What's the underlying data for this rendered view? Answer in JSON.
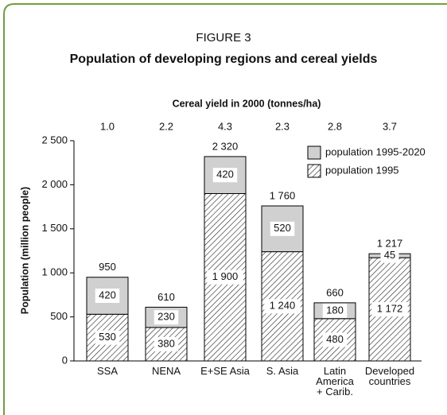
{
  "chart_data": {
    "type": "stacked_bar",
    "figure_label": "FIGURE 3",
    "title": "Population of developing regions and cereal yields",
    "subtitle": "Cereal yield in 2000 (tonnes/ha)",
    "y_label": "Population (million people)",
    "categories": [
      [
        "SSA"
      ],
      [
        "NENA"
      ],
      [
        "E+SE Asia"
      ],
      [
        "S. Asia"
      ],
      [
        "Latin",
        "America",
        "+ Carib."
      ],
      [
        "Developed",
        "countries"
      ]
    ],
    "cereal_yield": {
      "values": [
        1.0,
        2.2,
        4.3,
        2.3,
        2.8,
        3.7
      ],
      "value_labels": [
        "1.0",
        "2.2",
        "4.3",
        "2.3",
        "2.8",
        "3.7"
      ]
    },
    "series": [
      {
        "name": "population 1995",
        "color": "hatch",
        "values": [
          530,
          380,
          1900,
          1240,
          480,
          1172
        ],
        "value_labels": [
          "530",
          "380",
          "1 900",
          "1 240",
          "480",
          "1 172"
        ]
      },
      {
        "name": "population 1995-2020",
        "color": "#d0d0d0",
        "values": [
          420,
          230,
          420,
          520,
          180,
          45
        ]
      }
    ],
    "totals": [
      950,
      610,
      2320,
      1760,
      660,
      1217
    ],
    "total_labels": [
      "950",
      "610",
      "2 320",
      "1 760",
      "660",
      "1 217"
    ],
    "ylim": [
      0,
      2500
    ],
    "yticks": [
      0,
      500,
      {
        "value": 1000,
        "label": "1 000"
      },
      {
        "value": 1500,
        "label": "1 500"
      },
      {
        "value": 2000,
        "label": "2 000"
      },
      {
        "value": 2500,
        "label": "2 500"
      }
    ],
    "legend": "top-right"
  }
}
